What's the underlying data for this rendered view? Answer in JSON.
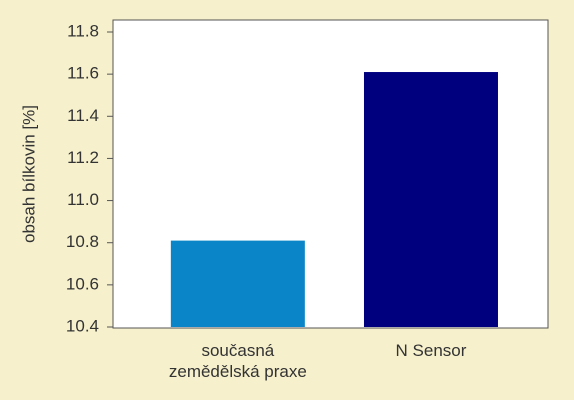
{
  "chart_data": {
    "type": "bar",
    "y_label": "obsah bílkovin  [%]",
    "categories": [
      "současná zemědělská praxe",
      "N Sensor"
    ],
    "values": [
      10.81,
      11.61
    ],
    "colors": [
      "#0a86c8",
      "#00007f"
    ],
    "ylim": [
      10.4,
      11.8
    ],
    "yticks": [
      10.4,
      10.6,
      10.8,
      {
        "value": 11,
        "label": "11.0"
      },
      11.2,
      11.4,
      11.6,
      11.8
    ]
  }
}
